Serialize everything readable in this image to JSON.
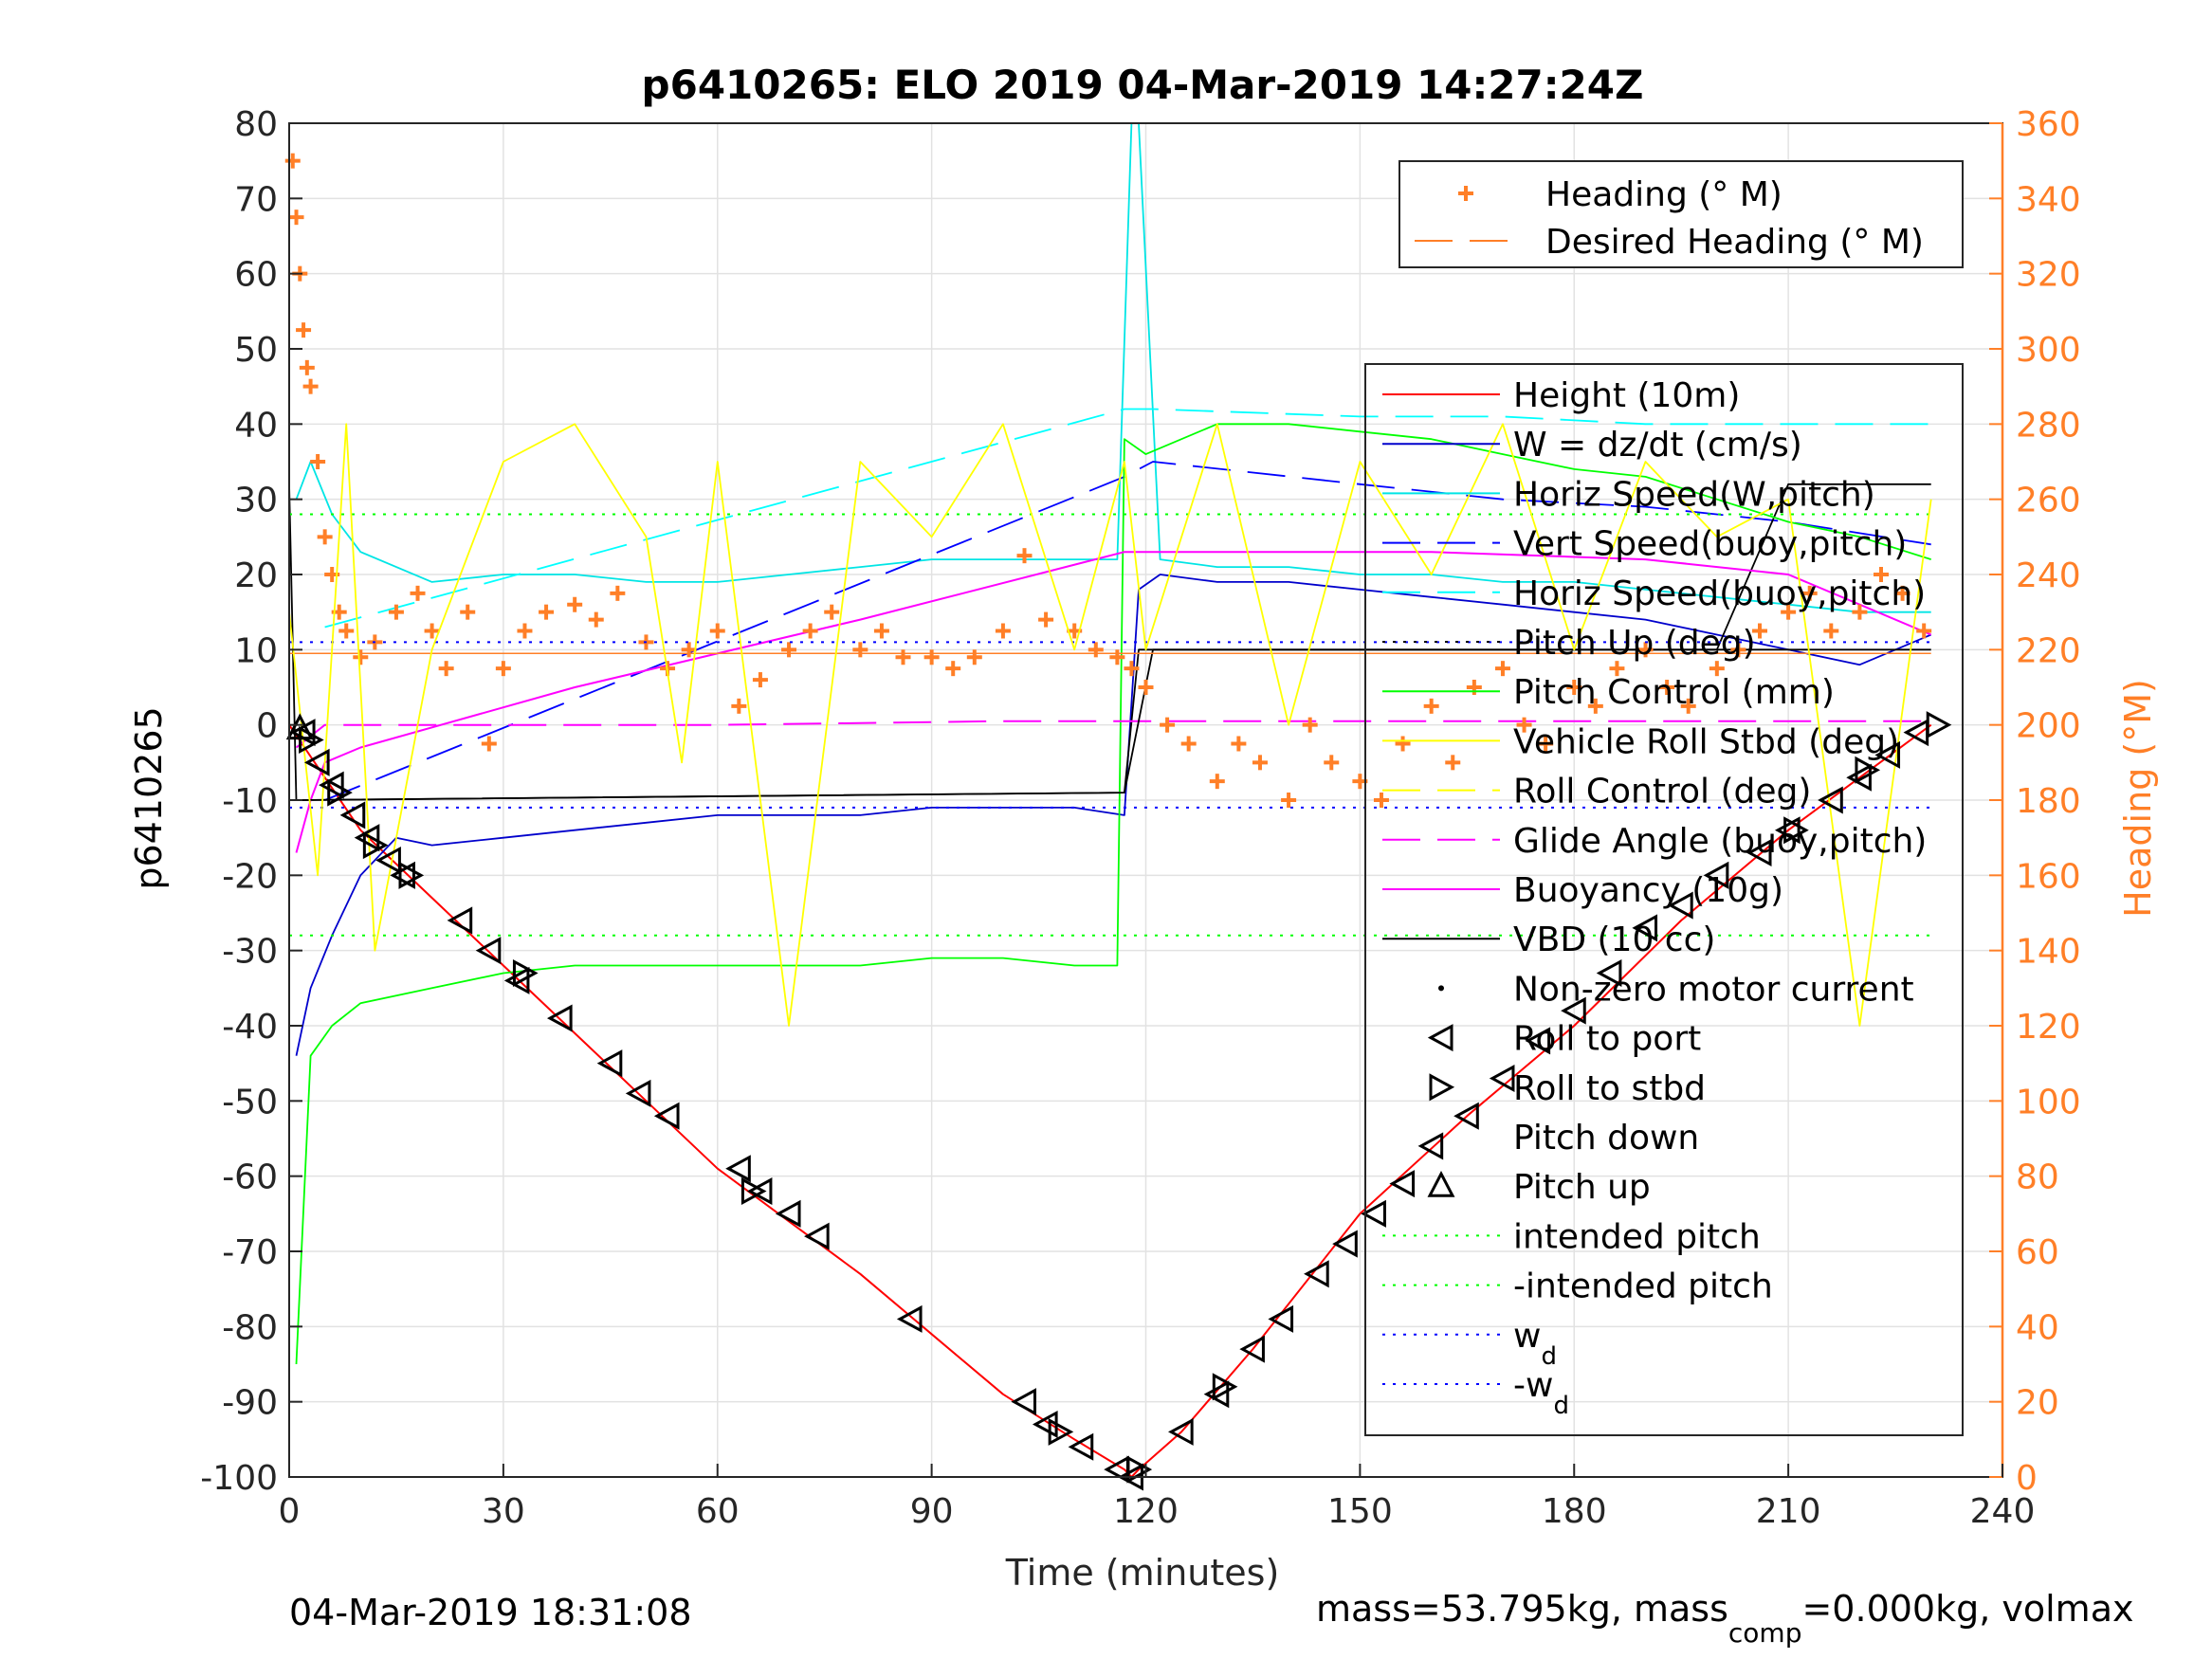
{
  "chart_data": {
    "type": "line",
    "title": "p6410265: ELO 2019 04-Mar-2019 14:27:24Z",
    "xlabel": "Time (minutes)",
    "ylabel_left": "p6410265",
    "ylabel_right": "Heading (°M)",
    "xlim": [
      0,
      240
    ],
    "ylim_left": [
      -100,
      80
    ],
    "ylim_right": [
      0,
      360
    ],
    "xticks": [
      0,
      30,
      60,
      90,
      120,
      150,
      180,
      210,
      240
    ],
    "yticks_left": [
      80,
      70,
      60,
      50,
      40,
      30,
      20,
      10,
      0,
      -10,
      -20,
      -30,
      -40,
      -50,
      -60,
      -70,
      -80,
      -90,
      -100
    ],
    "yticks_right": [
      360,
      340,
      320,
      300,
      280,
      260,
      240,
      220,
      200,
      180,
      160,
      140,
      120,
      100,
      80,
      60,
      40,
      20,
      0
    ],
    "grid": true,
    "colors": {
      "height": "#ff0000",
      "w": "#0000cc",
      "horiz_speed_w": "#00e5e5",
      "vert_speed_buoy": "#0000ff",
      "horiz_speed_buoy": "#00ffff",
      "pitch_up": "#000000",
      "pitch_control": "#00ff00",
      "roll_stbd": "#ffff00",
      "roll_control": "#ffff00",
      "glide_angle": "#ff00ff",
      "buoyancy": "#ff00ff",
      "vbd": "#000000",
      "heading": "#ff7f27",
      "intended_pitch": "#00ff00",
      "wd": "#0000ff",
      "right_axis": "#ff7f27"
    },
    "legend_heading": {
      "placement": "top-right",
      "entries": [
        "Heading (° M)",
        "Desired Heading (° M)"
      ]
    },
    "legend_main": {
      "placement": "right",
      "entries": [
        "Height (10m)",
        "W = dz/dt (cm/s)",
        "Horiz Speed(W,pitch)",
        "Vert Speed(buoy,pitch)",
        "Horiz Speed(buoy,pitch)",
        "Pitch Up (deg)",
        "Pitch Control (mm)",
        "Vehicle Roll Stbd (deg)",
        "Roll Control (deg)",
        "Glide Angle (buoy,pitch)",
        "Buoyancy (10g)",
        "VBD (10 cc)",
        "Non-zero motor current",
        "Roll to port",
        "Roll to stbd",
        "Pitch down",
        "Pitch up",
        "intended pitch",
        "-intended pitch",
        "w",
        "-w"
      ],
      "subscript_d": "d"
    },
    "series": [
      {
        "name": "Height (10m)",
        "axis": "left",
        "x": [
          0,
          10,
          20,
          30,
          40,
          50,
          60,
          70,
          80,
          90,
          100,
          110,
          117,
          118,
          119,
          125,
          135,
          150,
          165,
          180,
          195,
          210,
          220,
          230
        ],
        "y": [
          0,
          -14,
          -23,
          -32,
          -41,
          -50,
          -59,
          -66,
          -73,
          -81,
          -89,
          -95,
          -99,
          -100,
          -99,
          -94,
          -83,
          -65,
          -52,
          -40,
          -26,
          -14,
          -7,
          0
        ]
      },
      {
        "name": "W = dz/dt (cm/s)",
        "axis": "left",
        "x": [
          1,
          3,
          6,
          10,
          15,
          20,
          30,
          40,
          50,
          60,
          70,
          80,
          90,
          100,
          110,
          117,
          119,
          122,
          130,
          140,
          150,
          160,
          170,
          180,
          190,
          200,
          210,
          220,
          230
        ],
        "y": [
          -44,
          -35,
          -28,
          -20,
          -15,
          -16,
          -15,
          -14,
          -13,
          -12,
          -12,
          -12,
          -11,
          -11,
          -11,
          -12,
          18,
          20,
          19,
          19,
          18,
          17,
          16,
          15,
          14,
          12,
          10,
          8,
          12
        ]
      },
      {
        "name": "Horiz Speed(W,pitch)",
        "axis": "left",
        "x": [
          1,
          3,
          6,
          10,
          20,
          30,
          40,
          50,
          60,
          70,
          80,
          90,
          100,
          110,
          116,
          118,
          119,
          122,
          130,
          140,
          150,
          160,
          170,
          180,
          190,
          200,
          210,
          220,
          230
        ],
        "y": [
          30,
          35,
          28,
          23,
          19,
          20,
          20,
          19,
          19,
          20,
          21,
          22,
          22,
          22,
          22,
          80,
          80,
          22,
          21,
          21,
          20,
          20,
          19,
          19,
          18,
          17,
          16,
          15,
          15
        ]
      },
      {
        "name": "Vert Speed(buoy,pitch)",
        "axis": "left",
        "x": [
          5,
          117,
          121,
          150,
          170,
          190,
          210,
          230
        ],
        "y": [
          -10,
          33,
          35,
          32,
          30,
          29,
          27,
          24
        ]
      },
      {
        "name": "Horiz Speed(buoy,pitch)",
        "axis": "left",
        "x": [
          5,
          117,
          121,
          150,
          170,
          190,
          210,
          230
        ],
        "y": [
          13,
          42,
          42,
          41,
          41,
          40,
          40,
          40
        ]
      },
      {
        "name": "Pitch Up (deg)",
        "axis": "left",
        "x": [
          0,
          1,
          2,
          117,
          119,
          120,
          150,
          200,
          210,
          230
        ],
        "y": [
          32,
          -10,
          -10,
          -9,
          10,
          10,
          10,
          10,
          32,
          32
        ]
      },
      {
        "name": "Pitch Control (mm)",
        "axis": "left",
        "x": [
          1,
          3,
          6,
          10,
          20,
          30,
          40,
          50,
          60,
          70,
          80,
          90,
          100,
          110,
          116,
          117,
          120,
          130,
          140,
          150,
          160,
          170,
          180,
          190,
          200,
          210,
          220,
          230
        ],
        "y": [
          -85,
          -44,
          -40,
          -37,
          -35,
          -33,
          -32,
          -32,
          -32,
          -32,
          -32,
          -31,
          -31,
          -32,
          -32,
          38,
          36,
          40,
          40,
          39,
          38,
          36,
          34,
          33,
          30,
          27,
          25,
          22
        ]
      },
      {
        "name": "Buoyancy (10g)",
        "axis": "left",
        "x": [
          1,
          3,
          5,
          10,
          40,
          80,
          117,
          130,
          160,
          190,
          210,
          220,
          230
        ],
        "y": [
          -17,
          -10,
          -5,
          -3,
          5,
          14,
          23,
          23,
          23,
          22,
          20,
          16,
          12
        ]
      },
      {
        "name": "Glide Angle (buoy,pitch)",
        "axis": "left",
        "x": [
          1,
          5,
          20,
          60,
          100,
          120,
          160,
          200,
          230
        ],
        "y": [
          -3,
          0,
          0,
          0,
          0.5,
          0.5,
          0.5,
          0.5,
          0.5
        ]
      },
      {
        "name": "VBD (10 cc)",
        "axis": "left",
        "x": [
          1,
          117,
          121,
          230
        ],
        "y": [
          -10,
          -9,
          10,
          10
        ]
      },
      {
        "name": "Heading (° M)",
        "axis": "right",
        "type": "scatter",
        "x": [
          0.5,
          1,
          1.5,
          2,
          2.5,
          3,
          4,
          5,
          6,
          7,
          8,
          10,
          12,
          15,
          18,
          20,
          22,
          25,
          28,
          30,
          33,
          36,
          40,
          43,
          46,
          50,
          53,
          56,
          60,
          63,
          66,
          70,
          73,
          76,
          80,
          83,
          86,
          90,
          93,
          96,
          100,
          103,
          106,
          110,
          113,
          116,
          118,
          120,
          123,
          126,
          130,
          133,
          136,
          140,
          143,
          146,
          150,
          153,
          156,
          160,
          163,
          166,
          170,
          173,
          176,
          180,
          183,
          186,
          190,
          193,
          196,
          200,
          203,
          206,
          210,
          213,
          216,
          220,
          223,
          226,
          229
        ],
        "y": [
          350,
          335,
          320,
          305,
          295,
          290,
          270,
          250,
          240,
          230,
          225,
          218,
          222,
          230,
          235,
          225,
          215,
          230,
          195,
          215,
          225,
          230,
          232,
          228,
          235,
          222,
          215,
          220,
          225,
          205,
          212,
          220,
          225,
          230,
          220,
          225,
          218,
          218,
          215,
          218,
          225,
          245,
          228,
          225,
          220,
          218,
          215,
          210,
          200,
          195,
          185,
          195,
          190,
          180,
          200,
          190,
          185,
          180,
          195,
          205,
          190,
          210,
          215,
          200,
          195,
          210,
          205,
          215,
          220,
          210,
          205,
          215,
          220,
          225,
          230,
          235,
          225,
          230,
          240,
          235,
          225
        ]
      },
      {
        "name": "Desired Heading (° M)",
        "axis": "right",
        "x": [
          0,
          230
        ],
        "y": [
          219,
          219
        ]
      },
      {
        "name": "intended pitch",
        "axis": "left",
        "x": [
          0,
          230
        ],
        "y": [
          28,
          28
        ]
      },
      {
        "name": "-intended pitch",
        "axis": "left",
        "x": [
          0,
          230
        ],
        "y": [
          -28,
          -28
        ]
      },
      {
        "name": "w",
        "axis": "left",
        "x": [
          0,
          230
        ],
        "y": [
          11,
          11
        ]
      },
      {
        "name": "-w",
        "axis": "left",
        "x": [
          0,
          230
        ],
        "y": [
          -11,
          -11
        ]
      },
      {
        "name": "Roll Control (deg)",
        "axis": "left",
        "x": [
          0,
          4,
          8,
          12,
          20,
          30,
          40,
          50,
          55,
          60,
          68,
          70,
          80,
          90,
          100,
          110,
          117,
          120,
          130,
          140,
          150,
          160,
          170,
          180,
          190,
          200,
          210,
          220,
          230
        ],
        "y": [
          15,
          -20,
          40,
          -30,
          10,
          35,
          40,
          25,
          -5,
          35,
          -25,
          -40,
          35,
          25,
          40,
          10,
          35,
          10,
          40,
          0,
          35,
          20,
          40,
          10,
          35,
          25,
          30,
          -40,
          30
        ]
      }
    ],
    "markers": {
      "roll_to_port_x": [
        2,
        4,
        6,
        9,
        11,
        14,
        16,
        24,
        28,
        32,
        38,
        45,
        49,
        53,
        63,
        66,
        70,
        74,
        87,
        103,
        106,
        111,
        116,
        118,
        125,
        130,
        135,
        139,
        144,
        148,
        152,
        156,
        160,
        165,
        170,
        175,
        180,
        185,
        190,
        195,
        200,
        206,
        210,
        216,
        220,
        224,
        228
      ],
      "roll_to_port_y": [
        -1,
        -5,
        -8,
        -12,
        -15,
        -18,
        -20,
        -26,
        -30,
        -34,
        -39,
        -45,
        -49,
        -52,
        -59,
        -62,
        -65,
        -68,
        -79,
        -90,
        -93,
        -96,
        -99,
        -100,
        -94,
        -89,
        -83,
        -79,
        -73,
        -69,
        -65,
        -61,
        -56,
        -52,
        -47,
        -42,
        -38,
        -33,
        -27,
        -24,
        -20,
        -17,
        -14,
        -10,
        -7,
        -4,
        -1
      ],
      "roll_to_stbd_x": [
        3,
        7,
        12,
        17,
        33,
        65,
        108,
        119,
        131,
        211,
        221,
        231
      ],
      "roll_to_stbd_y": [
        -2,
        -9,
        -16,
        -20,
        -33,
        -62,
        -94,
        -99,
        -88,
        -14,
        -6,
        0
      ],
      "pitch_up_x": [
        1.5
      ],
      "pitch_up_y": [
        -0.5
      ]
    }
  },
  "footer": {
    "date_left": "04-Mar-2019 18:31:08",
    "mass_text_1": "mass=53.795kg, mass",
    "mass_sub": "comp",
    "mass_text_2": "=0.000kg, volmax"
  }
}
